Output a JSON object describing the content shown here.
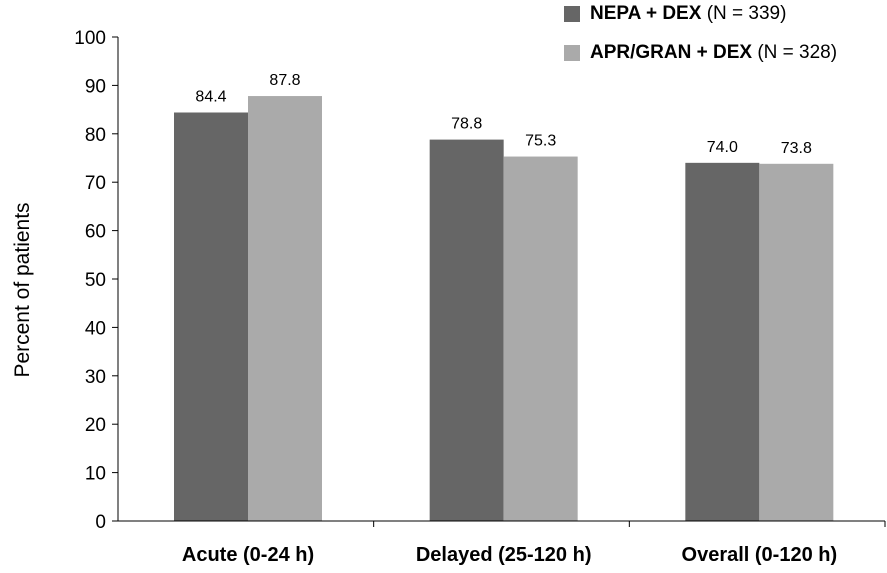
{
  "chart_data": {
    "type": "bar",
    "title": "",
    "xlabel": "",
    "ylabel": "Percent of patients",
    "ylim": [
      0,
      100
    ],
    "yticks": [
      "0",
      "10",
      "20",
      "30",
      "40",
      "50",
      "60",
      "70",
      "80",
      "90",
      "100"
    ],
    "categories": [
      "Acute (0-24 h)",
      "Delayed (25-120 h)",
      "Overall (0-120 h)"
    ],
    "series": [
      {
        "name": "NEPA + DEX",
        "n_label": "(N = 339)",
        "color": "#666666",
        "values": [
          84.4,
          78.8,
          74.0
        ],
        "labels": [
          "84.4",
          "78.8",
          "74.0"
        ]
      },
      {
        "name": "APR/GRAN + DEX",
        "n_label": "(N = 328)",
        "color": "#aaaaaa",
        "values": [
          87.8,
          75.3,
          73.8
        ],
        "labels": [
          "87.8",
          "75.3",
          "73.8"
        ]
      }
    ],
    "legend_position": "top-right",
    "grid": false
  }
}
